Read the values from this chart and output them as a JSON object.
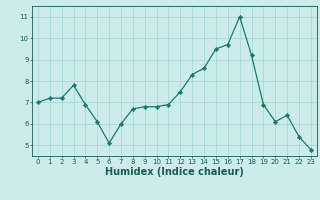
{
  "x": [
    0,
    1,
    2,
    3,
    4,
    5,
    6,
    7,
    8,
    9,
    10,
    11,
    12,
    13,
    14,
    15,
    16,
    17,
    18,
    19,
    20,
    21,
    22,
    23
  ],
  "y": [
    7.0,
    7.2,
    7.2,
    7.8,
    6.9,
    6.1,
    5.1,
    6.0,
    6.7,
    6.8,
    6.8,
    6.9,
    7.5,
    8.3,
    8.6,
    9.5,
    9.7,
    11.0,
    9.2,
    6.9,
    6.1,
    6.4,
    5.4,
    4.8
  ],
  "xlabel": "Humidex (Indice chaleur)",
  "ylim": [
    4.5,
    11.5
  ],
  "xlim": [
    -0.5,
    23.5
  ],
  "yticks": [
    5,
    6,
    7,
    8,
    9,
    10,
    11
  ],
  "xticks": [
    0,
    1,
    2,
    3,
    4,
    5,
    6,
    7,
    8,
    9,
    10,
    11,
    12,
    13,
    14,
    15,
    16,
    17,
    18,
    19,
    20,
    21,
    22,
    23
  ],
  "line_color": "#1a7a6e",
  "marker_color": "#1a7a6e",
  "bg_color": "#ccecea",
  "grid_color": "#aad8d5",
  "label_color": "#1a5c55",
  "tick_label_fontsize": 5.0,
  "xlabel_fontsize": 7.0
}
